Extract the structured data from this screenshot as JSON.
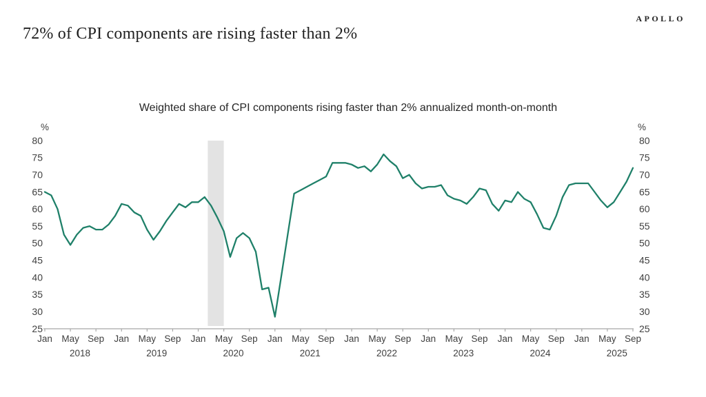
{
  "page": {
    "brand": "APOLLO",
    "title": "72% of CPI components are rising faster than 2%"
  },
  "chart_data": {
    "type": "line",
    "title": "Weighted share of CPI components rising faster than 2% annualized month-on-month",
    "unit_label": "%",
    "ylim": [
      25,
      80
    ],
    "y_ticks": [
      80,
      75,
      70,
      65,
      60,
      55,
      50,
      45,
      40,
      35,
      30,
      25
    ],
    "grid": false,
    "legend": "none",
    "x_start": "2018-01",
    "x_end": "2025-09",
    "x_axis": {
      "tick_months": [
        "Jan",
        "May",
        "Sep"
      ],
      "tick_month_offsets": [
        0,
        4,
        8
      ],
      "years": [
        2018,
        2019,
        2020,
        2021,
        2022,
        2023,
        2024,
        2025
      ]
    },
    "shaded_region": {
      "name": "recession-band",
      "from": "2020-02",
      "to": "2020-04",
      "color": "#e3e3e3"
    },
    "series": [
      {
        "name": "Weighted share of CPI components rising faster than 2% annualized month-on-month",
        "color": "#1f8069",
        "frequency": "monthly",
        "values": [
          65,
          64,
          60,
          52.5,
          49.5,
          52.5,
          54.5,
          55,
          54,
          54,
          55.5,
          58,
          61.5,
          61,
          59,
          58,
          54,
          51,
          53.5,
          56.5,
          59,
          61.5,
          60.5,
          62,
          62,
          63.5,
          61,
          57.5,
          53.5,
          46,
          51.5,
          53,
          51.5,
          47.5,
          36.5,
          37,
          28.5,
          40.5,
          52.5,
          64.5,
          65.5,
          66.5,
          67.5,
          68.5,
          69.5,
          73.5,
          73.5,
          73.5,
          73,
          72,
          72.5,
          71,
          73,
          76,
          74,
          72.5,
          69,
          70,
          67.5,
          66,
          66.5,
          66.5,
          67,
          64,
          63,
          62.5,
          61.5,
          63.5,
          66,
          65.5,
          61.5,
          59.5,
          62.5,
          62,
          65,
          63,
          62,
          58.5,
          54.5,
          54,
          58,
          63.5,
          67,
          67.5,
          67.5,
          67.5,
          65,
          62.5,
          60.5,
          62,
          65,
          68,
          72
        ]
      }
    ],
    "last_point": {
      "date": "2025-09",
      "value": 72
    },
    "colors": {
      "axis": "#a8a8a8",
      "tick_text": "#3f3f3f",
      "line": "#1f8069",
      "band": "#e3e3e3"
    }
  }
}
